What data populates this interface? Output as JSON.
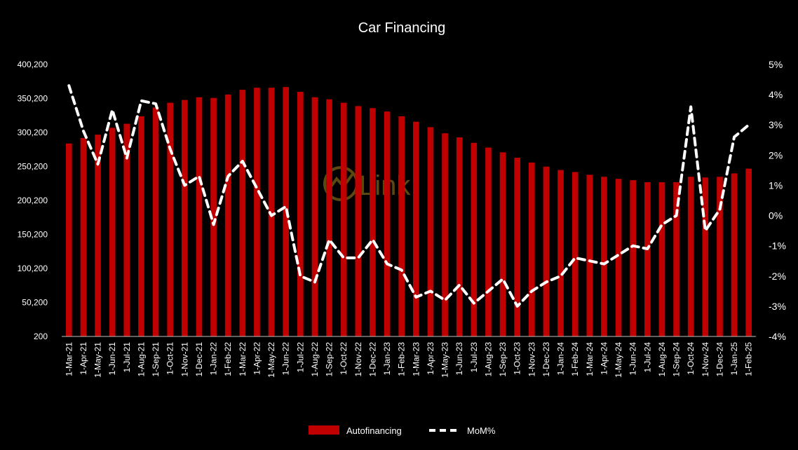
{
  "colors": {
    "background": "#000000",
    "bar": "#c00000",
    "line": "#ffffff",
    "text": "#ffffff",
    "watermark": "#c9a227"
  },
  "watermark": {
    "text": "Link"
  },
  "chart_data": {
    "type": "bar",
    "title": "Car Financing",
    "categories": [
      "1-Mar-21",
      "1-Apr-21",
      "1-May-21",
      "1-Jun-21",
      "1-Jul-21",
      "1-Aug-21",
      "1-Sep-21",
      "1-Oct-21",
      "1-Nov-21",
      "1-Dec-21",
      "1-Jan-22",
      "1-Feb-22",
      "1-Mar-22",
      "1-Apr-22",
      "1-May-22",
      "1-Jun-22",
      "1-Jul-22",
      "1-Aug-22",
      "1-Sep-22",
      "1-Oct-22",
      "1-Nov-22",
      "1-Dec-22",
      "1-Jan-23",
      "1-Feb-23",
      "1-Mar-23",
      "1-Apr-23",
      "1-May-23",
      "1-Jun-23",
      "1-Jul-23",
      "1-Aug-23",
      "1-Sep-23",
      "1-Oct-23",
      "1-Nov-23",
      "1-Dec-23",
      "1-Jan-24",
      "1-Feb-24",
      "1-Mar-24",
      "1-Apr-24",
      "1-May-24",
      "1-Jun-24",
      "1-Jul-24",
      "1-Aug-24",
      "1-Sep-24",
      "1-Oct-24",
      "1-Nov-24",
      "1-Dec-24",
      "1-Jan-25",
      "1-Feb-25"
    ],
    "series": [
      {
        "name": "Autofinancing",
        "type": "bar",
        "axis": "left",
        "values": [
          284000,
          292000,
          297000,
          307000,
          313000,
          324000,
          337000,
          344000,
          348000,
          352000,
          351000,
          356000,
          363000,
          366000,
          366000,
          367000,
          360000,
          352000,
          349000,
          344000,
          339000,
          336000,
          331000,
          324000,
          316000,
          308000,
          299000,
          293000,
          285000,
          278000,
          271000,
          263000,
          256000,
          250000,
          245000,
          242000,
          238000,
          235000,
          232000,
          230000,
          227000,
          227000,
          227000,
          235000,
          234000,
          235000,
          240000,
          247000
        ]
      },
      {
        "name": "MoM%",
        "type": "line",
        "axis": "right",
        "style": "dashed",
        "values": [
          4.3,
          2.8,
          1.7,
          3.5,
          1.9,
          3.8,
          3.7,
          2.2,
          1.0,
          1.3,
          -0.3,
          1.3,
          1.8,
          0.9,
          0.0,
          0.3,
          -2.0,
          -2.2,
          -0.8,
          -1.4,
          -1.4,
          -0.8,
          -1.6,
          -1.8,
          -2.7,
          -2.5,
          -2.8,
          -2.3,
          -2.9,
          -2.5,
          -2.1,
          -3.0,
          -2.5,
          -2.2,
          -2.0,
          -1.4,
          -1.5,
          -1.6,
          -1.3,
          -1.0,
          -1.1,
          -0.3,
          0.0,
          3.6,
          -0.5,
          0.2,
          2.6,
          3.0
        ]
      }
    ],
    "y_left": {
      "min": 200,
      "max": 400200,
      "ticks": [
        "200",
        "50,200",
        "100,200",
        "150,200",
        "200,200",
        "250,200",
        "300,200",
        "350,200",
        "400,200"
      ]
    },
    "y_right": {
      "min": -4,
      "max": 5,
      "ticks": [
        "-4%",
        "-3%",
        "-2%",
        "-1%",
        "0%",
        "1%",
        "2%",
        "3%",
        "4%",
        "5%"
      ]
    },
    "legend_position": "bottom-center",
    "grid": false
  }
}
